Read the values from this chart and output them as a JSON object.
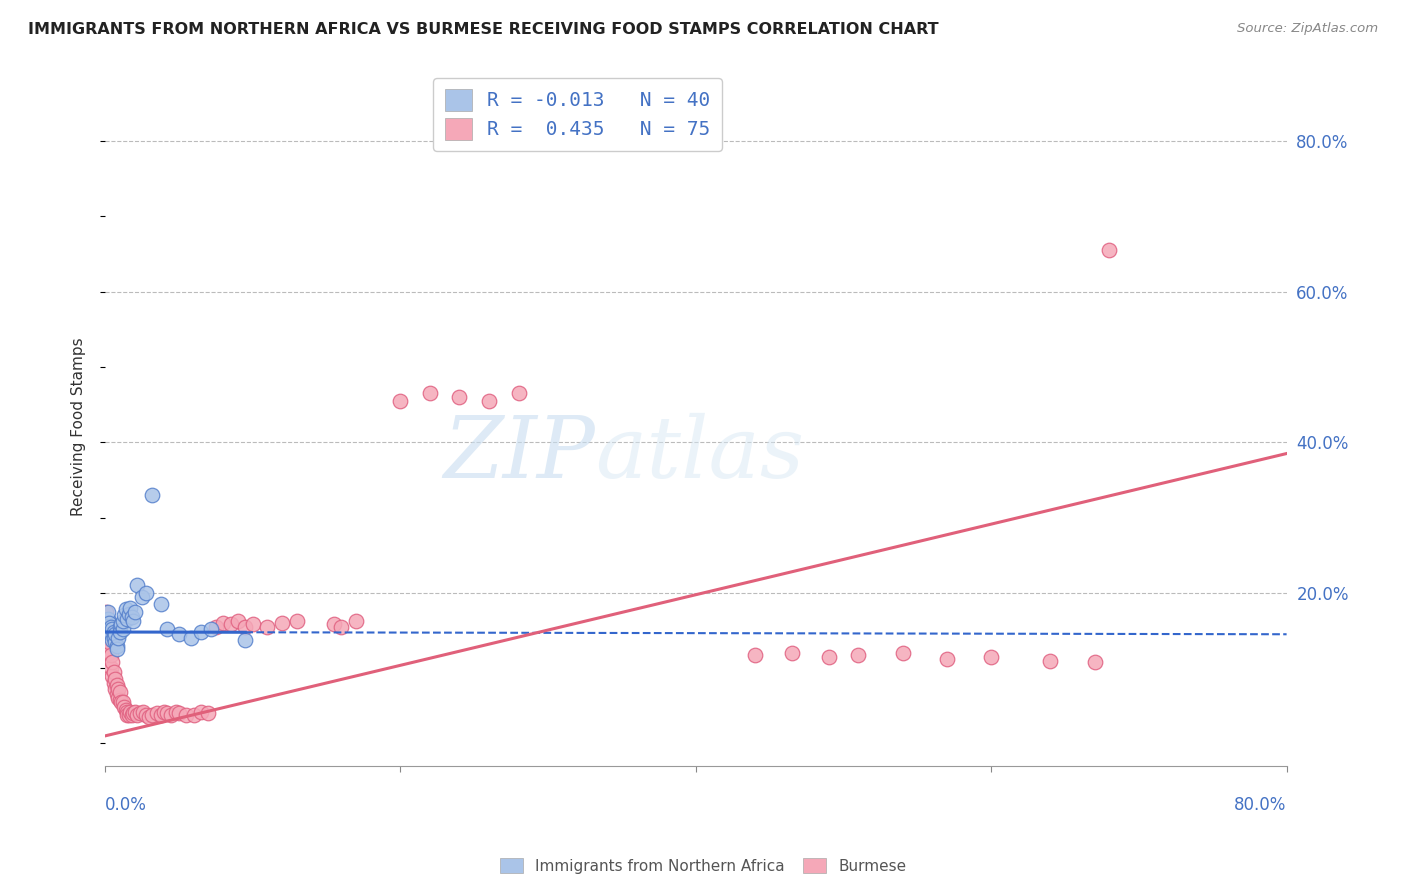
{
  "title": "IMMIGRANTS FROM NORTHERN AFRICA VS BURMESE RECEIVING FOOD STAMPS CORRELATION CHART",
  "source": "Source: ZipAtlas.com",
  "ylabel": "Receiving Food Stamps",
  "ytick_labels": [
    "",
    "20.0%",
    "40.0%",
    "60.0%",
    "80.0%"
  ],
  "ytick_values": [
    0.0,
    0.2,
    0.4,
    0.6,
    0.8
  ],
  "xlim": [
    0.0,
    0.8
  ],
  "ylim": [
    -0.03,
    0.87
  ],
  "blue_label": "Immigrants from Northern Africa",
  "pink_label": "Burmese",
  "blue_R": "-0.013",
  "blue_N": "40",
  "pink_R": "0.435",
  "pink_N": "75",
  "blue_color": "#aac4e8",
  "pink_color": "#f5a8b8",
  "blue_edge_color": "#5580cc",
  "pink_edge_color": "#e06080",
  "blue_line_color": "#3366cc",
  "pink_line_color": "#e0607a",
  "watermark_color": "#ccdff0",
  "blue_trend_y_start": 0.148,
  "blue_trend_y_end": 0.145,
  "pink_trend_y_start": 0.01,
  "pink_trend_y_end": 0.385,
  "blue_scatter_x": [
    0.001,
    0.002,
    0.002,
    0.003,
    0.003,
    0.004,
    0.004,
    0.005,
    0.005,
    0.006,
    0.006,
    0.007,
    0.007,
    0.008,
    0.008,
    0.009,
    0.01,
    0.01,
    0.011,
    0.012,
    0.012,
    0.013,
    0.014,
    0.015,
    0.016,
    0.017,
    0.018,
    0.019,
    0.02,
    0.022,
    0.025,
    0.028,
    0.032,
    0.038,
    0.042,
    0.05,
    0.058,
    0.065,
    0.072,
    0.095
  ],
  "blue_scatter_y": [
    0.155,
    0.165,
    0.175,
    0.16,
    0.15,
    0.155,
    0.145,
    0.138,
    0.152,
    0.148,
    0.14,
    0.135,
    0.145,
    0.13,
    0.125,
    0.14,
    0.155,
    0.148,
    0.158,
    0.152,
    0.162,
    0.17,
    0.178,
    0.165,
    0.172,
    0.18,
    0.168,
    0.162,
    0.175,
    0.21,
    0.195,
    0.2,
    0.33,
    0.185,
    0.152,
    0.145,
    0.14,
    0.148,
    0.152,
    0.138
  ],
  "pink_scatter_x": [
    0.001,
    0.001,
    0.002,
    0.002,
    0.003,
    0.003,
    0.004,
    0.004,
    0.005,
    0.005,
    0.006,
    0.006,
    0.007,
    0.007,
    0.008,
    0.008,
    0.009,
    0.009,
    0.01,
    0.01,
    0.011,
    0.012,
    0.013,
    0.014,
    0.015,
    0.015,
    0.016,
    0.017,
    0.018,
    0.019,
    0.02,
    0.022,
    0.024,
    0.026,
    0.028,
    0.03,
    0.032,
    0.035,
    0.038,
    0.04,
    0.042,
    0.045,
    0.048,
    0.05,
    0.055,
    0.06,
    0.065,
    0.07,
    0.075,
    0.08,
    0.085,
    0.09,
    0.095,
    0.1,
    0.11,
    0.12,
    0.13,
    0.155,
    0.16,
    0.17,
    0.2,
    0.22,
    0.24,
    0.26,
    0.28,
    0.44,
    0.465,
    0.49,
    0.51,
    0.54,
    0.57,
    0.6,
    0.64,
    0.67,
    0.68
  ],
  "pink_scatter_y": [
    0.155,
    0.175,
    0.14,
    0.16,
    0.12,
    0.135,
    0.1,
    0.118,
    0.09,
    0.108,
    0.08,
    0.095,
    0.072,
    0.085,
    0.065,
    0.078,
    0.06,
    0.072,
    0.058,
    0.068,
    0.055,
    0.055,
    0.048,
    0.045,
    0.042,
    0.038,
    0.038,
    0.042,
    0.038,
    0.04,
    0.042,
    0.038,
    0.04,
    0.042,
    0.038,
    0.035,
    0.038,
    0.04,
    0.038,
    0.042,
    0.04,
    0.038,
    0.042,
    0.04,
    0.038,
    0.038,
    0.042,
    0.04,
    0.155,
    0.16,
    0.158,
    0.162,
    0.155,
    0.158,
    0.155,
    0.16,
    0.162,
    0.158,
    0.155,
    0.162,
    0.455,
    0.465,
    0.46,
    0.455,
    0.465,
    0.118,
    0.12,
    0.115,
    0.118,
    0.12,
    0.112,
    0.115,
    0.11,
    0.108,
    0.655
  ]
}
